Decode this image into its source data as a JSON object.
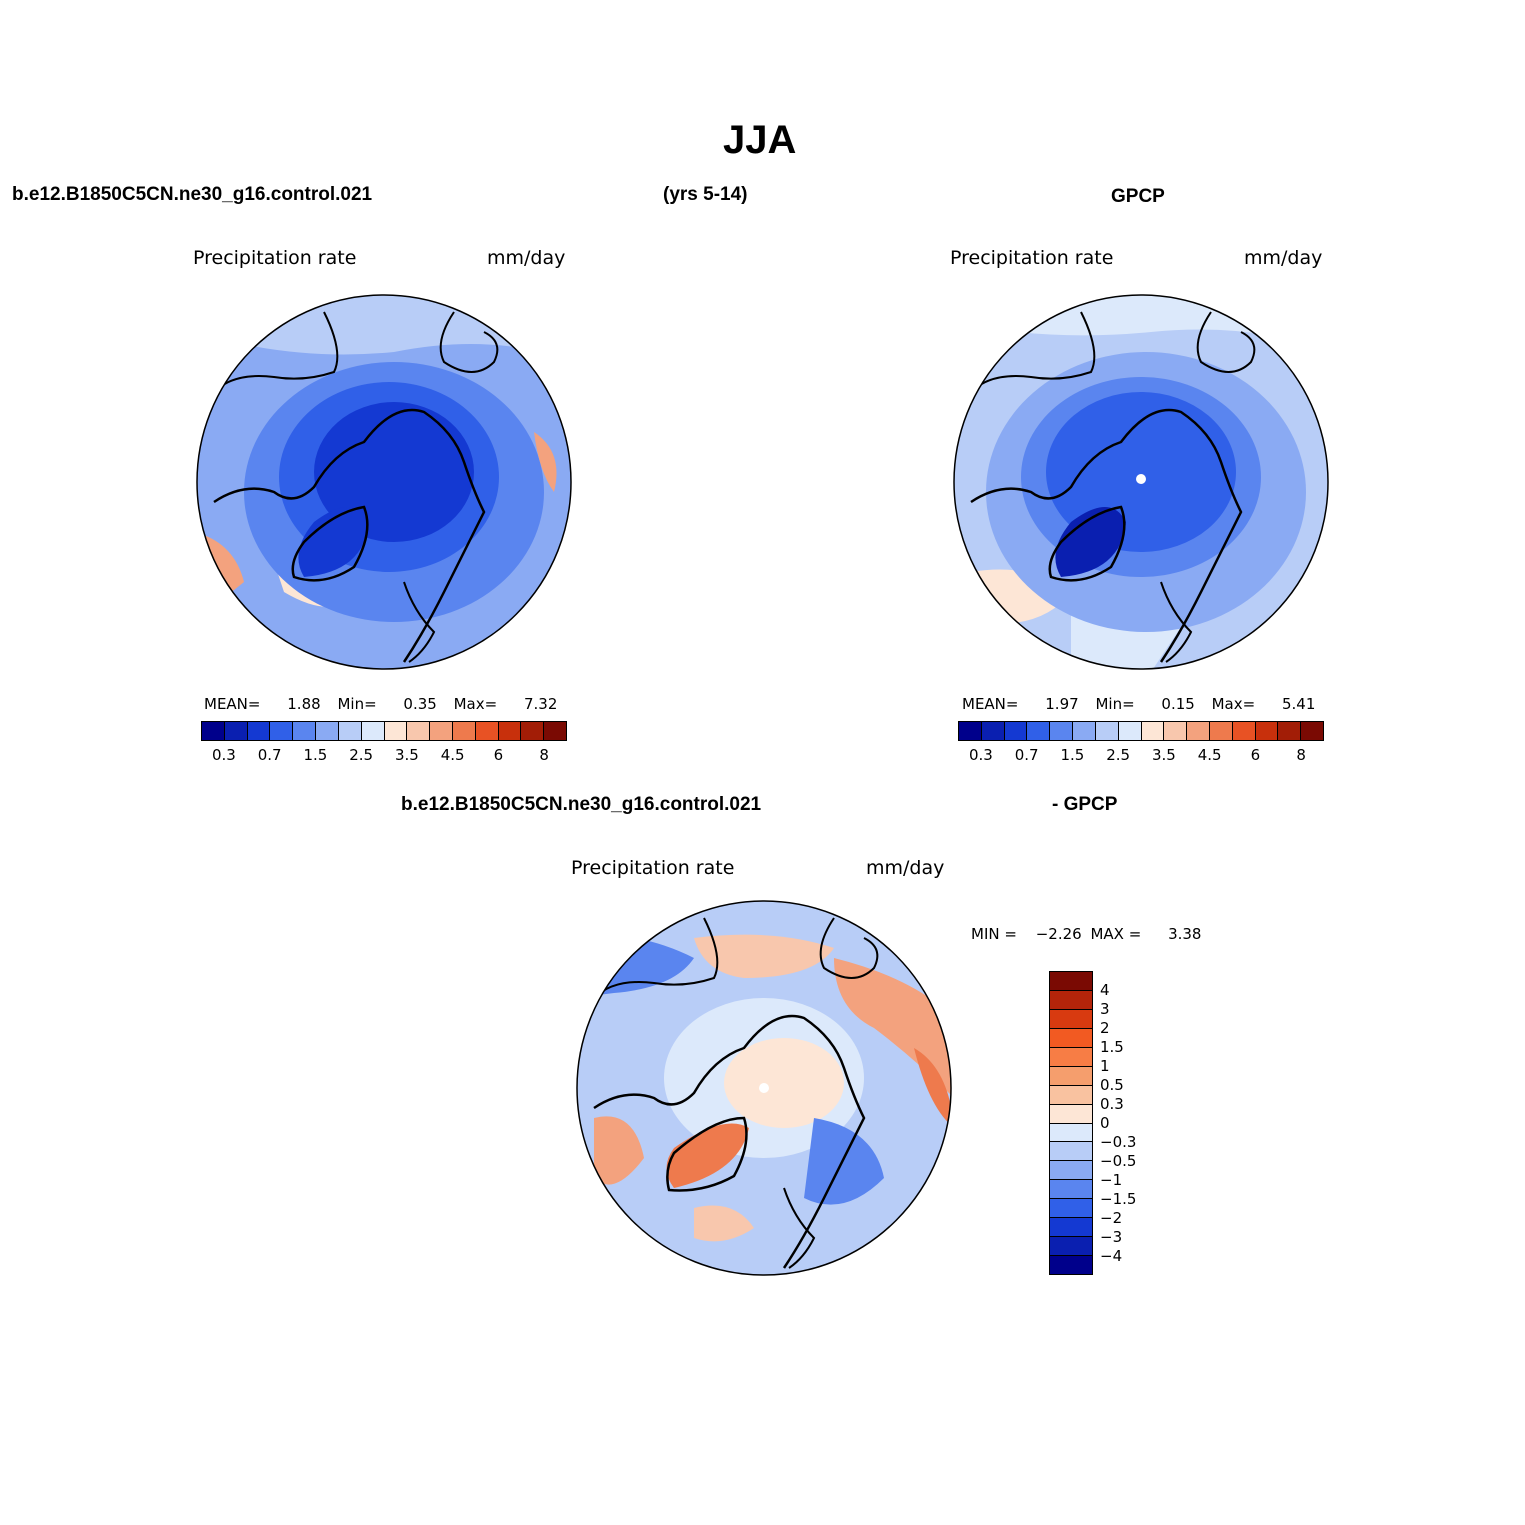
{
  "page": {
    "title": "JJA",
    "left_header": "b.e12.B1850C5CN.ne30_g16.control.021",
    "years": "(yrs 5-14)",
    "right_header": "GPCP",
    "diff_header_case": "b.e12.B1850C5CN.ne30_g16.control.021",
    "diff_header_obs": "- GPCP"
  },
  "panels": {
    "model": {
      "variable": "Precipitation rate",
      "units": "mm/day",
      "mean_label": "MEAN=",
      "mean": "1.88",
      "min_label": "Min=",
      "min": "0.35",
      "max_label": "Max=",
      "max": "7.32"
    },
    "obs": {
      "variable": "Precipitation rate",
      "units": "mm/day",
      "mean_label": "MEAN=",
      "mean": "1.97",
      "min_label": "Min=",
      "min": "0.15",
      "max_label": "Max=",
      "max": "5.41"
    },
    "diff": {
      "variable": "Precipitation rate",
      "units": "mm/day",
      "min_label": "MIN =",
      "min": "−2.26",
      "max_label": "MAX =",
      "max": "3.38"
    }
  },
  "colorbar_abs": {
    "colors": [
      "#00008b",
      "#0a1fb0",
      "#1439d2",
      "#3060e8",
      "#5a85ef",
      "#8aaaf3",
      "#b8cdf7",
      "#dce9fb",
      "#fde6d6",
      "#f8c7ad",
      "#f3a27e",
      "#ee7a4d",
      "#e85224",
      "#c8300c",
      "#a21d06",
      "#7a0a03"
    ],
    "ticks": [
      "0.3",
      "0.7",
      "1.5",
      "2.5",
      "3.5",
      "4.5",
      "6",
      "8"
    ]
  },
  "colorbar_diff": {
    "colors": [
      "#7a0a03",
      "#b4240a",
      "#d83a10",
      "#f25a22",
      "#f77d45",
      "#f59e6d",
      "#f9c2a0",
      "#fde6d6",
      "#dce9fb",
      "#b8cdf7",
      "#8aaaf3",
      "#5a85ef",
      "#3060e8",
      "#1439d2",
      "#0a1fb0",
      "#00008b"
    ],
    "ticks": [
      "4",
      "3",
      "2",
      "1.5",
      "1",
      "0.5",
      "0.3",
      "0",
      "−0.3",
      "−0.5",
      "−1",
      "−1.5",
      "−2",
      "−3",
      "−4"
    ]
  },
  "map_colors": {
    "deep": "#1439d2",
    "mid": "#3060e8",
    "light": "#5a85ef",
    "pale": "#8aaaf3",
    "paler": "#b8cdf7",
    "palest": "#dce9fb",
    "warm1": "#fde6d6",
    "warm2": "#f8c7ad",
    "warm3": "#f3a27e",
    "warm4": "#ee7a4d",
    "coast": "#000000"
  }
}
